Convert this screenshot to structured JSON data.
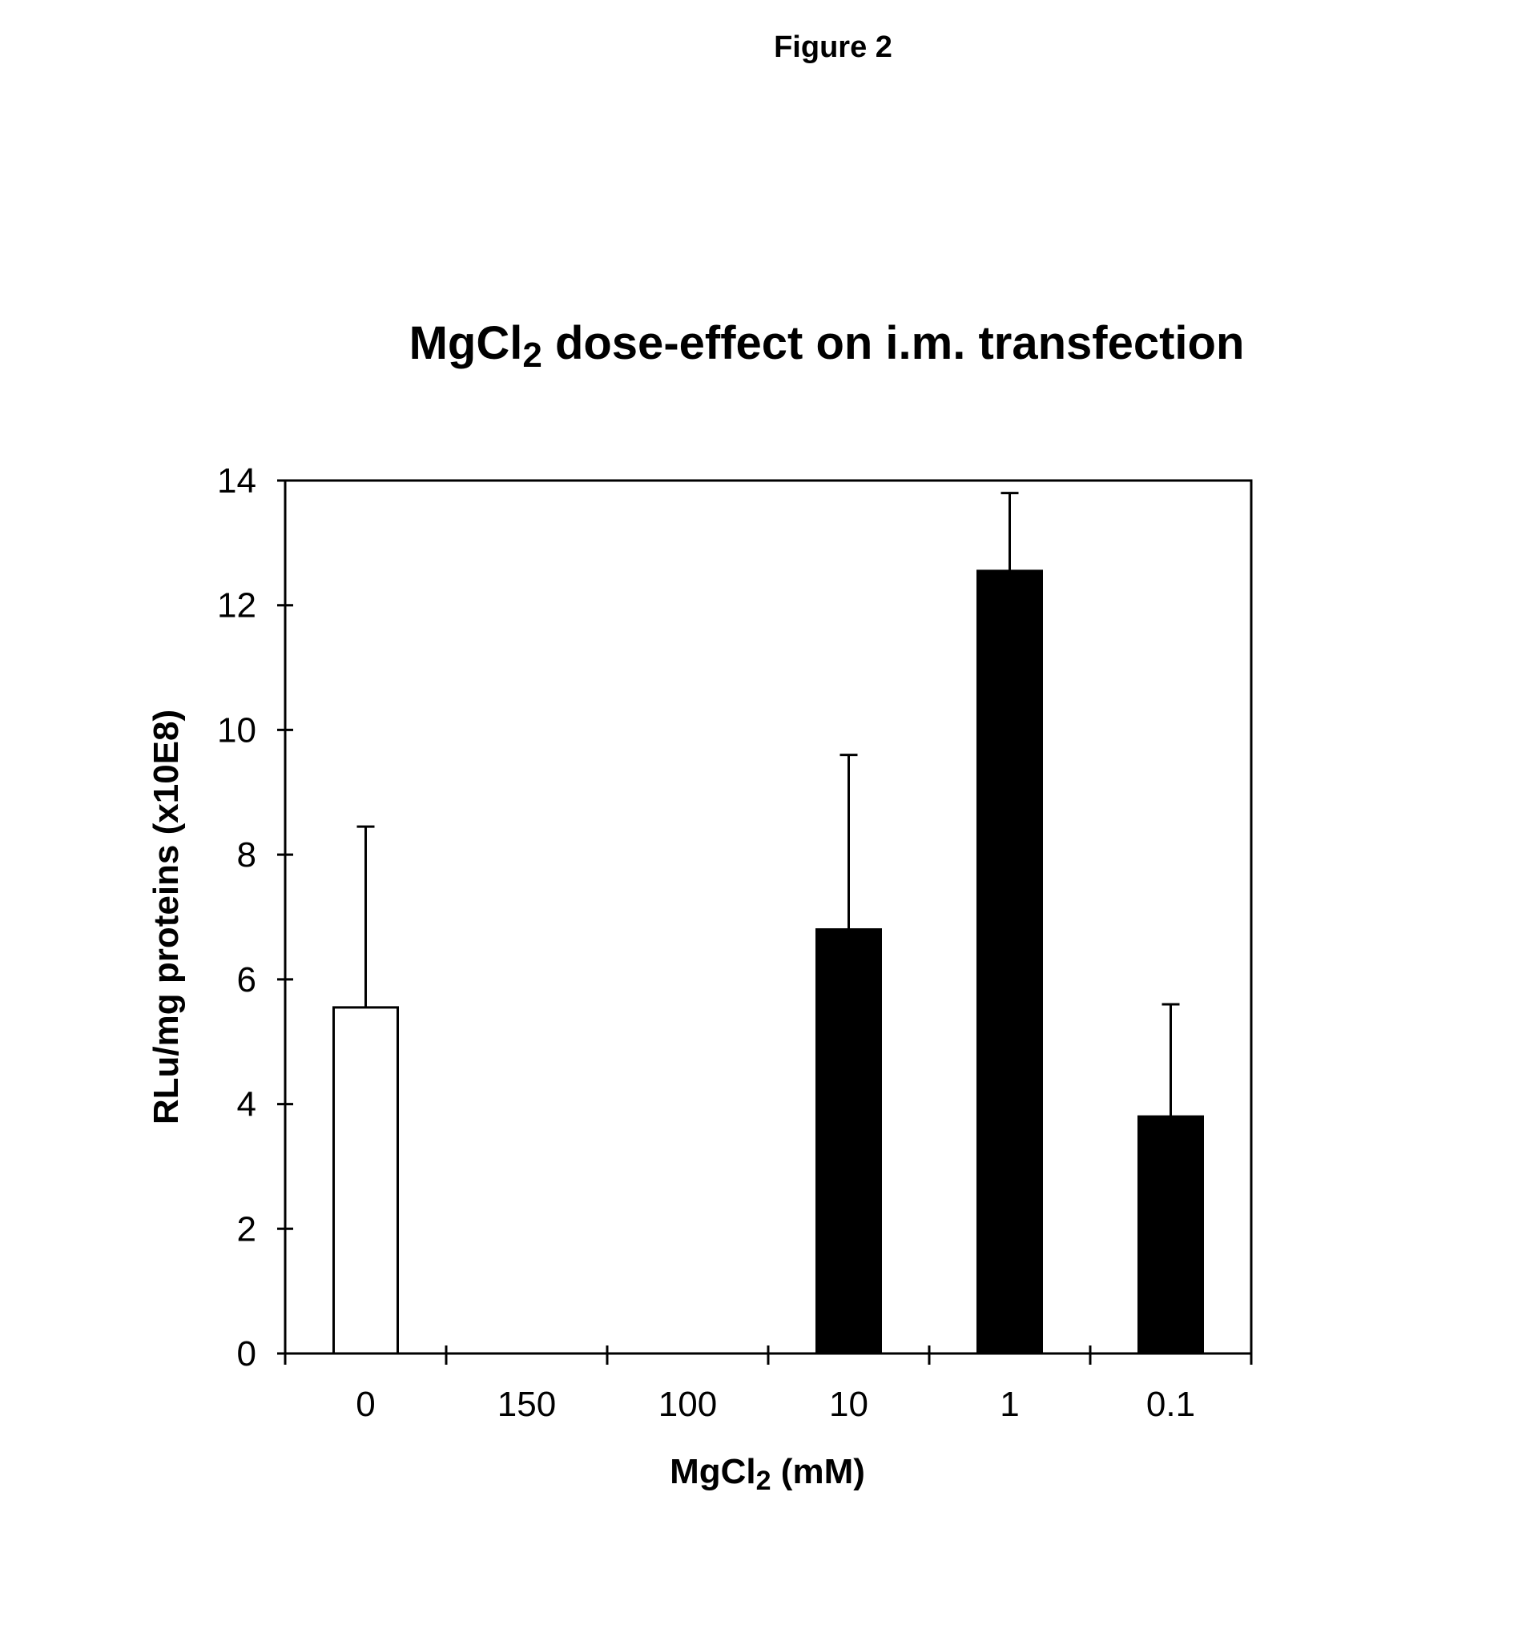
{
  "figure_label": "Figure 2",
  "chart_data": {
    "type": "bar",
    "title": "MgCl2 dose-effect on i.m. transfection",
    "title_parts": {
      "prefix": "MgCl",
      "subscript": "2",
      "suffix": " dose-effect on i.m. transfection"
    },
    "xlabel": "MgCl2 (mM)",
    "xlabel_parts": {
      "prefix": "MgCl",
      "subscript": "2",
      "suffix": " (mM)"
    },
    "ylabel": "RLu/mg proteins (x10E8)",
    "categories": [
      "0",
      "150",
      "100",
      "10",
      "1",
      "0.1"
    ],
    "values": [
      5.55,
      0,
      0,
      6.8,
      12.55,
      3.8
    ],
    "error_upper": [
      8.45,
      null,
      null,
      9.6,
      13.8,
      5.6
    ],
    "bar_colors": [
      "#ffffff",
      "#000000",
      "#000000",
      "#000000",
      "#000000",
      "#000000"
    ],
    "yticks": [
      "0",
      "2",
      "4",
      "6",
      "8",
      "10",
      "12",
      "14"
    ],
    "ylim": [
      0,
      14
    ],
    "grid": false,
    "legend": null
  }
}
